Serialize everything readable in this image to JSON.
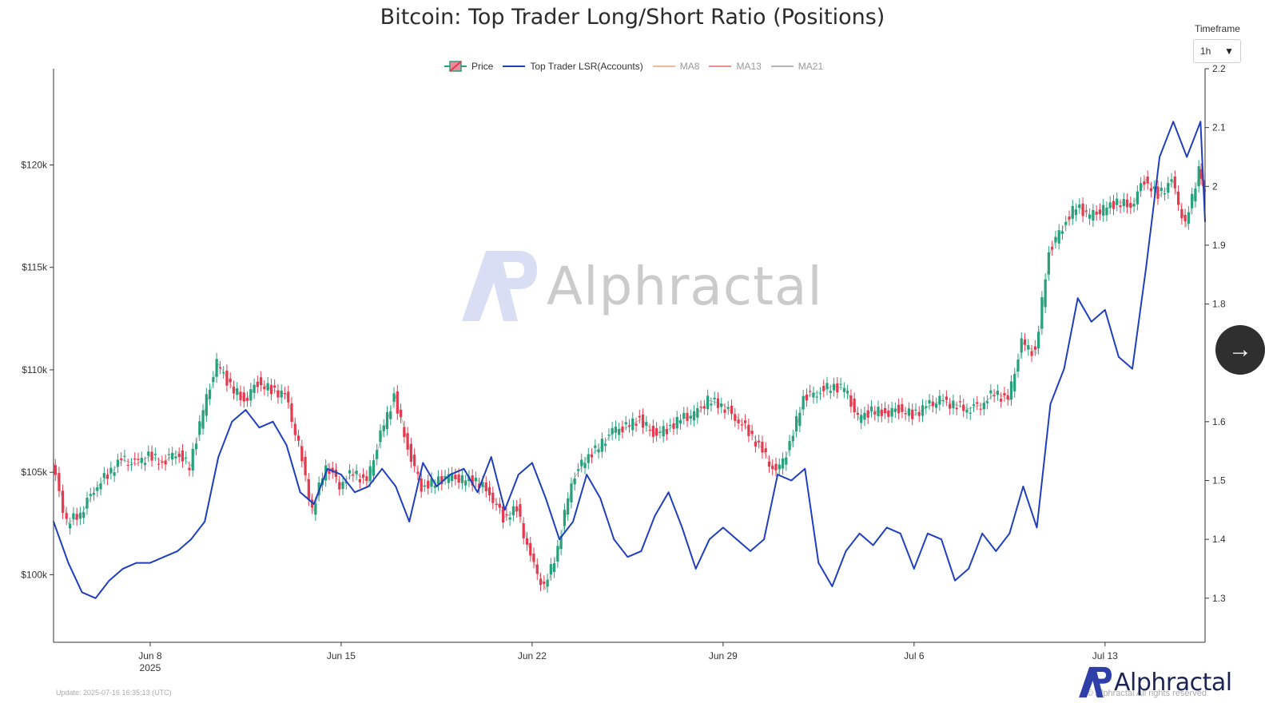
{
  "title": "Bitcoin: Top Trader Long/Short Ratio (Positions)",
  "timeframe": {
    "label": "Timeframe",
    "value": "1h"
  },
  "legend": [
    {
      "key": "price",
      "label": "Price",
      "color_up": "#26a17b",
      "color_down": "#e5394f"
    },
    {
      "key": "lsr",
      "label": "Top Trader LSR(Accounts)",
      "color": "#1f3fbf"
    },
    {
      "key": "ma8",
      "label": "MA8",
      "color": "#f2a07b"
    },
    {
      "key": "ma13",
      "label": "MA13",
      "color": "#e06a6a"
    },
    {
      "key": "ma21",
      "label": "MA21",
      "color": "#9a9a9a"
    }
  ],
  "footer": {
    "update": "Update: 2025-07-16 16:35:13 (UTC)",
    "copyright": "© Alphractal All rights reserved",
    "brand": "Alphractal"
  },
  "watermark": "Alphractal",
  "chart_data": {
    "type": "line",
    "x_range": [
      "2025-06-04T11:00",
      "2025-07-16T16:00"
    ],
    "x_ticks": [
      {
        "date": "2025-06-08",
        "label": "Jun 8",
        "sublabel": "2025"
      },
      {
        "date": "2025-06-15",
        "label": "Jun 15"
      },
      {
        "date": "2025-06-22",
        "label": "Jun 22"
      },
      {
        "date": "2025-06-29",
        "label": "Jun 29"
      },
      {
        "date": "2025-07-06",
        "label": "Jul 6"
      },
      {
        "date": "2025-07-13",
        "label": "Jul 13"
      }
    ],
    "y_left": {
      "ticks": [
        100000,
        105000,
        110000,
        115000,
        120000
      ],
      "tick_labels": [
        "$100k",
        "$105k",
        "$110k",
        "$115k",
        "$120k"
      ],
      "range": [
        96700,
        124700
      ]
    },
    "y_right": {
      "ticks": [
        1.3,
        1.4,
        1.5,
        1.6,
        1.8,
        1.9,
        2,
        2.1,
        2.2
      ],
      "tick_labels": [
        "1.3",
        "1.4",
        "1.5",
        "1.6",
        "1.8",
        "1.9",
        "2",
        "2.1",
        "2.2"
      ],
      "range": [
        1.225,
        2.2
      ]
    },
    "series": [
      {
        "name": "Price",
        "type": "candlestick",
        "axis": "left",
        "x": [
          "2025-06-04T11:00",
          "2025-06-05T00:00",
          "2025-06-05T12:00",
          "2025-06-06T00:00",
          "2025-06-06T12:00",
          "2025-06-07T00:00",
          "2025-06-07T12:00",
          "2025-06-08T00:00",
          "2025-06-08T12:00",
          "2025-06-09T00:00",
          "2025-06-09T12:00",
          "2025-06-10T00:00",
          "2025-06-10T12:00",
          "2025-06-11T00:00",
          "2025-06-11T12:00",
          "2025-06-12T00:00",
          "2025-06-12T12:00",
          "2025-06-13T00:00",
          "2025-06-13T12:00",
          "2025-06-14T00:00",
          "2025-06-14T12:00",
          "2025-06-15T00:00",
          "2025-06-15T12:00",
          "2025-06-16T00:00",
          "2025-06-16T12:00",
          "2025-06-17T00:00",
          "2025-06-17T12:00",
          "2025-06-18T00:00",
          "2025-06-18T12:00",
          "2025-06-19T00:00",
          "2025-06-19T12:00",
          "2025-06-20T00:00",
          "2025-06-20T12:00",
          "2025-06-21T00:00",
          "2025-06-21T12:00",
          "2025-06-22T00:00",
          "2025-06-22T12:00",
          "2025-06-23T00:00",
          "2025-06-23T12:00",
          "2025-06-24T00:00",
          "2025-06-24T12:00",
          "2025-06-25T00:00",
          "2025-06-25T12:00",
          "2025-06-26T00:00",
          "2025-06-26T12:00",
          "2025-06-27T00:00",
          "2025-06-27T12:00",
          "2025-06-28T00:00",
          "2025-06-28T12:00",
          "2025-06-29T00:00",
          "2025-06-29T12:00",
          "2025-06-30T00:00",
          "2025-06-30T12:00",
          "2025-07-01T00:00",
          "2025-07-01T12:00",
          "2025-07-02T00:00",
          "2025-07-02T12:00",
          "2025-07-03T00:00",
          "2025-07-03T12:00",
          "2025-07-04T00:00",
          "2025-07-04T12:00",
          "2025-07-05T00:00",
          "2025-07-05T12:00",
          "2025-07-06T00:00",
          "2025-07-06T12:00",
          "2025-07-07T00:00",
          "2025-07-07T12:00",
          "2025-07-08T00:00",
          "2025-07-08T12:00",
          "2025-07-09T00:00",
          "2025-07-09T12:00",
          "2025-07-10T00:00",
          "2025-07-10T12:00",
          "2025-07-11T00:00",
          "2025-07-11T12:00",
          "2025-07-12T00:00",
          "2025-07-12T12:00",
          "2025-07-13T00:00",
          "2025-07-13T12:00",
          "2025-07-14T00:00",
          "2025-07-14T12:00",
          "2025-07-15T00:00",
          "2025-07-15T12:00",
          "2025-07-16T00:00",
          "2025-07-16T12:00",
          "2025-07-16T16:00"
        ],
        "values": [
          105500,
          102500,
          103000,
          104200,
          104900,
          105600,
          105400,
          105800,
          105500,
          106000,
          105300,
          108000,
          110300,
          109200,
          108500,
          109400,
          109000,
          108800,
          106300,
          103100,
          105400,
          104400,
          105000,
          104500,
          106800,
          108700,
          106200,
          104300,
          104500,
          104800,
          104600,
          104600,
          104000,
          102800,
          103200,
          100800,
          99300,
          101300,
          104600,
          105700,
          106200,
          107000,
          107200,
          107600,
          106900,
          107100,
          107600,
          107800,
          108500,
          108300,
          107700,
          107000,
          106000,
          104900,
          106300,
          108700,
          108900,
          109200,
          109100,
          107600,
          108000,
          107900,
          108100,
          107800,
          108200,
          108500,
          108300,
          108100,
          108300,
          108900,
          108500,
          111300,
          110800,
          115800,
          117000,
          118000,
          117500,
          117800,
          118200,
          118000,
          119300,
          118500,
          119200,
          117000,
          119800,
          118800
        ]
      },
      {
        "name": "Top Trader LSR(Accounts)",
        "type": "line",
        "axis": "right",
        "x": [
          "2025-06-04T11:00",
          "2025-06-05T00:00",
          "2025-06-05T12:00",
          "2025-06-06T00:00",
          "2025-06-06T12:00",
          "2025-06-07T00:00",
          "2025-06-07T12:00",
          "2025-06-08T00:00",
          "2025-06-08T12:00",
          "2025-06-09T00:00",
          "2025-06-09T12:00",
          "2025-06-10T00:00",
          "2025-06-10T12:00",
          "2025-06-11T00:00",
          "2025-06-11T12:00",
          "2025-06-12T00:00",
          "2025-06-12T12:00",
          "2025-06-13T00:00",
          "2025-06-13T12:00",
          "2025-06-14T00:00",
          "2025-06-14T12:00",
          "2025-06-15T00:00",
          "2025-06-15T12:00",
          "2025-06-16T00:00",
          "2025-06-16T12:00",
          "2025-06-17T00:00",
          "2025-06-17T12:00",
          "2025-06-18T00:00",
          "2025-06-18T12:00",
          "2025-06-19T00:00",
          "2025-06-19T12:00",
          "2025-06-20T00:00",
          "2025-06-20T12:00",
          "2025-06-21T00:00",
          "2025-06-21T12:00",
          "2025-06-22T00:00",
          "2025-06-22T12:00",
          "2025-06-23T00:00",
          "2025-06-23T12:00",
          "2025-06-24T00:00",
          "2025-06-24T12:00",
          "2025-06-25T00:00",
          "2025-06-25T12:00",
          "2025-06-26T00:00",
          "2025-06-26T12:00",
          "2025-06-27T00:00",
          "2025-06-27T12:00",
          "2025-06-28T00:00",
          "2025-06-28T12:00",
          "2025-06-29T00:00",
          "2025-06-29T12:00",
          "2025-06-30T00:00",
          "2025-06-30T12:00",
          "2025-07-01T00:00",
          "2025-07-01T12:00",
          "2025-07-02T00:00",
          "2025-07-02T12:00",
          "2025-07-03T00:00",
          "2025-07-03T12:00",
          "2025-07-04T00:00",
          "2025-07-04T12:00",
          "2025-07-05T00:00",
          "2025-07-05T12:00",
          "2025-07-06T00:00",
          "2025-07-06T12:00",
          "2025-07-07T00:00",
          "2025-07-07T12:00",
          "2025-07-08T00:00",
          "2025-07-08T12:00",
          "2025-07-09T00:00",
          "2025-07-09T12:00",
          "2025-07-10T00:00",
          "2025-07-10T12:00",
          "2025-07-11T00:00",
          "2025-07-11T12:00",
          "2025-07-12T00:00",
          "2025-07-12T12:00",
          "2025-07-13T00:00",
          "2025-07-13T12:00",
          "2025-07-14T00:00",
          "2025-07-14T12:00",
          "2025-07-15T00:00",
          "2025-07-15T12:00",
          "2025-07-16T00:00",
          "2025-07-16T12:00",
          "2025-07-16T16:00"
        ],
        "values": [
          1.43,
          1.36,
          1.31,
          1.3,
          1.33,
          1.35,
          1.36,
          1.36,
          1.37,
          1.38,
          1.4,
          1.43,
          1.54,
          1.6,
          1.62,
          1.59,
          1.6,
          1.56,
          1.48,
          1.46,
          1.52,
          1.51,
          1.48,
          1.49,
          1.52,
          1.49,
          1.43,
          1.53,
          1.49,
          1.51,
          1.52,
          1.48,
          1.54,
          1.45,
          1.51,
          1.53,
          1.47,
          1.4,
          1.43,
          1.51,
          1.47,
          1.4,
          1.37,
          1.38,
          1.44,
          1.48,
          1.42,
          1.35,
          1.4,
          1.42,
          1.4,
          1.38,
          1.4,
          1.51,
          1.5,
          1.52,
          1.36,
          1.32,
          1.38,
          1.41,
          1.39,
          1.42,
          1.41,
          1.35,
          1.41,
          1.4,
          1.33,
          1.35,
          1.41,
          1.38,
          1.41,
          1.49,
          1.42,
          1.63,
          1.69,
          1.81,
          1.77,
          1.79,
          1.71,
          1.69,
          1.86,
          2.05,
          2.11,
          2.05,
          2.11,
          1.94
        ]
      }
    ]
  }
}
